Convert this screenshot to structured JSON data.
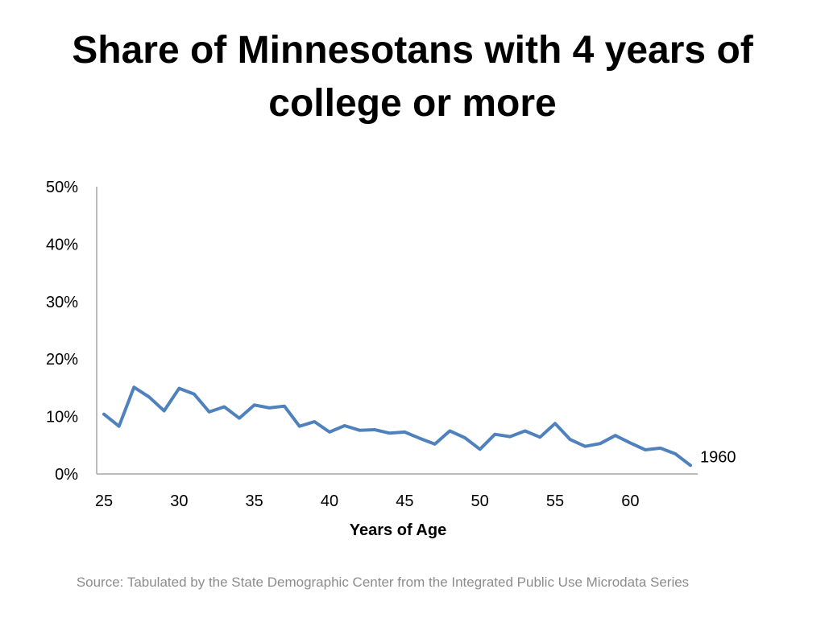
{
  "title": "Share of Minnesotans with 4 years of college or more",
  "source": "Source: Tabulated by the State Demographic Center from the Integrated Public Use Microdata Series",
  "colors": {
    "series_line": "#4f81bd",
    "axis": "#a6a6a6",
    "source_text": "#8c8c8c"
  },
  "chart_data": {
    "type": "line",
    "title": "Share of Minnesotans with 4 years of college or more",
    "xlabel": "Years of Age",
    "ylabel": "",
    "xlim": [
      25,
      64
    ],
    "ylim": [
      0,
      50
    ],
    "x_ticks": [
      "25",
      "30",
      "35",
      "40",
      "45",
      "50",
      "55",
      "60"
    ],
    "y_ticks": [
      "0%",
      "10%",
      "20%",
      "30%",
      "40%",
      "50%"
    ],
    "grid": false,
    "legend": "none",
    "series": [
      {
        "name": "1960",
        "x": [
          25,
          26,
          27,
          28,
          29,
          30,
          31,
          32,
          33,
          34,
          35,
          36,
          37,
          38,
          39,
          40,
          41,
          42,
          43,
          44,
          45,
          46,
          47,
          48,
          49,
          50,
          51,
          52,
          53,
          54,
          55,
          56,
          57,
          58,
          59,
          60,
          61,
          62,
          63,
          64
        ],
        "values": [
          10.4,
          8.3,
          15.1,
          13.4,
          11.0,
          14.9,
          13.9,
          10.8,
          11.7,
          9.7,
          12.0,
          11.5,
          11.8,
          8.3,
          9.1,
          7.3,
          8.4,
          7.6,
          7.7,
          7.1,
          7.3,
          6.2,
          5.2,
          7.5,
          6.3,
          4.3,
          6.9,
          6.5,
          7.5,
          6.4,
          8.8,
          6.0,
          4.8,
          5.3,
          6.7,
          5.4,
          4.2,
          4.5,
          3.5,
          1.5
        ]
      }
    ]
  }
}
